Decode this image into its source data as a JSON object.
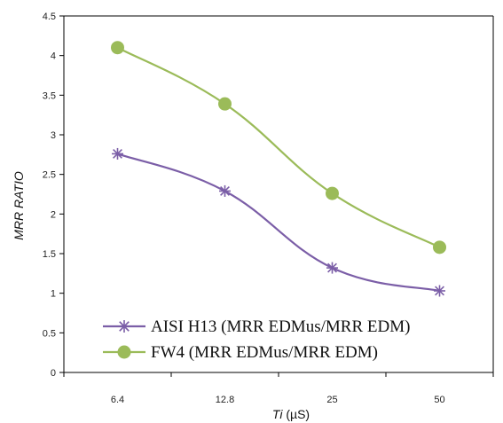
{
  "chart_data": {
    "type": "line",
    "categories": [
      "6.4",
      "12.8",
      "25",
      "50"
    ],
    "xlabel": {
      "var": "Ti",
      "unit": " (µS)"
    },
    "ylabel": "MRR  RATIO",
    "ylim": [
      0,
      4.5
    ],
    "yticks": [
      "0",
      "0.5",
      "1",
      "1.5",
      "2",
      "2.5",
      "3",
      "3.5",
      "4",
      "4.5"
    ],
    "grid": false,
    "legend_position": "bottom-left",
    "series": [
      {
        "name": "AISI H13 (MRR EDMus/MRR EDM)",
        "values": [
          2.76,
          2.29,
          1.32,
          1.03
        ],
        "color": "#7B5EA7",
        "marker": "star"
      },
      {
        "name": "FW4 (MRR EDMus/MRR EDM)",
        "values": [
          4.1,
          3.39,
          2.26,
          1.58
        ],
        "color": "#9BBB59",
        "marker": "circle"
      }
    ]
  }
}
